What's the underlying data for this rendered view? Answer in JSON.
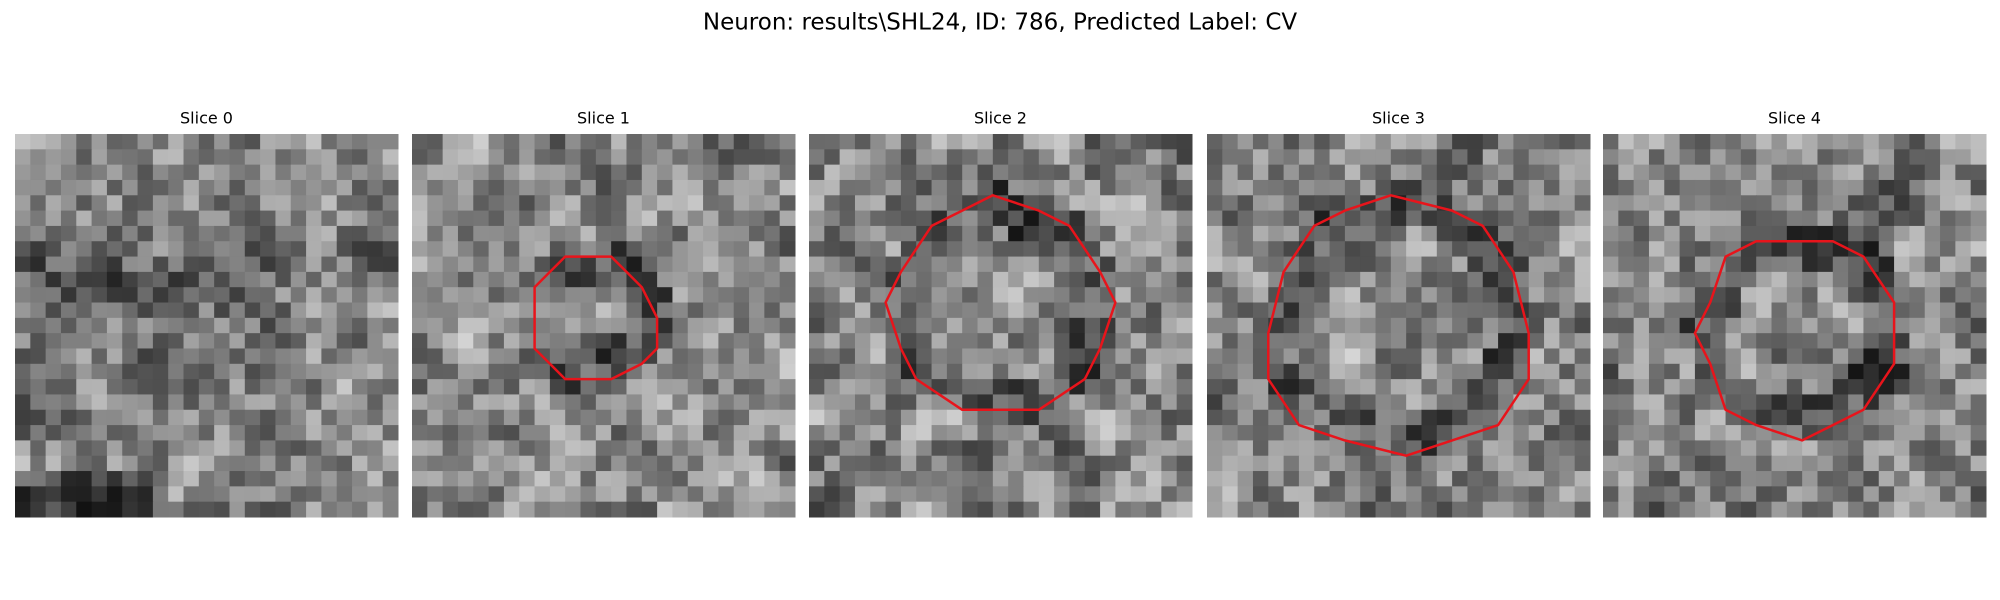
{
  "title": "Neuron: results\\SHL24, ID: 786, Predicted Label: CV",
  "panels": [
    {
      "title": "Slice 0"
    },
    {
      "title": "Slice 1"
    },
    {
      "title": "Slice 2"
    },
    {
      "title": "Slice 3"
    },
    {
      "title": "Slice 4"
    }
  ]
}
